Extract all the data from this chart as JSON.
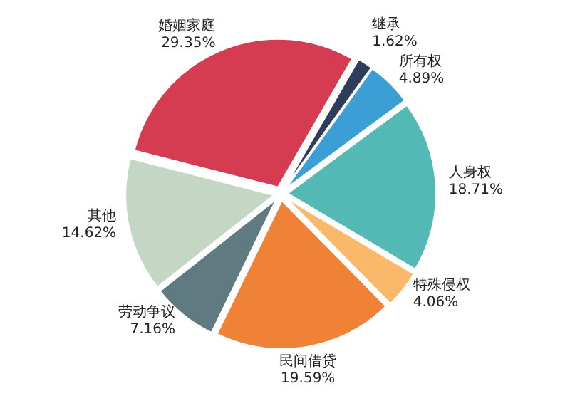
{
  "chart_data": {
    "type": "pie",
    "categories": [
      "继承",
      "所有权",
      "人身权",
      "特殊侵权",
      "民间借贷",
      "劳动争议",
      "其他",
      "婚姻家庭"
    ],
    "values": [
      1.62,
      4.89,
      18.71,
      4.06,
      19.59,
      7.16,
      14.62,
      29.35
    ],
    "value_labels": [
      "1.62%",
      "4.89%",
      "18.71%",
      "4.06%",
      "19.59%",
      "7.16%",
      "14.62%",
      "29.35%"
    ],
    "colors": [
      "#2f3d5c",
      "#3b9fd6",
      "#54b8b4",
      "#f9b86a",
      "#ef8236",
      "#5f7a81",
      "#c4d6c4",
      "#d63c51"
    ]
  }
}
